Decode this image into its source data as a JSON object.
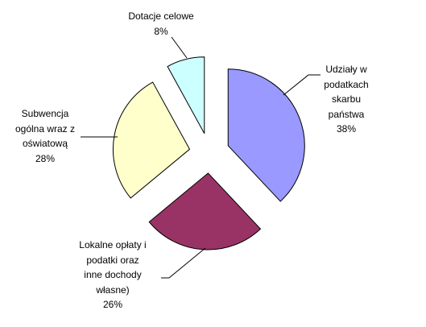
{
  "chart_data": {
    "type": "pie",
    "categories": [
      "Udziały w podatkach skarbu państwa",
      "Lokalne opłaty i podatki oraz inne dochody własne)",
      "Subwencja ogólna wraz z oświatową",
      "Dotacje celowe"
    ],
    "values": [
      38,
      26,
      28,
      8
    ],
    "value_labels": [
      "38%",
      "26%",
      "28%",
      "8%"
    ],
    "colors": [
      "#9999ff",
      "#993366",
      "#ffffcc",
      "#ccffff"
    ]
  }
}
